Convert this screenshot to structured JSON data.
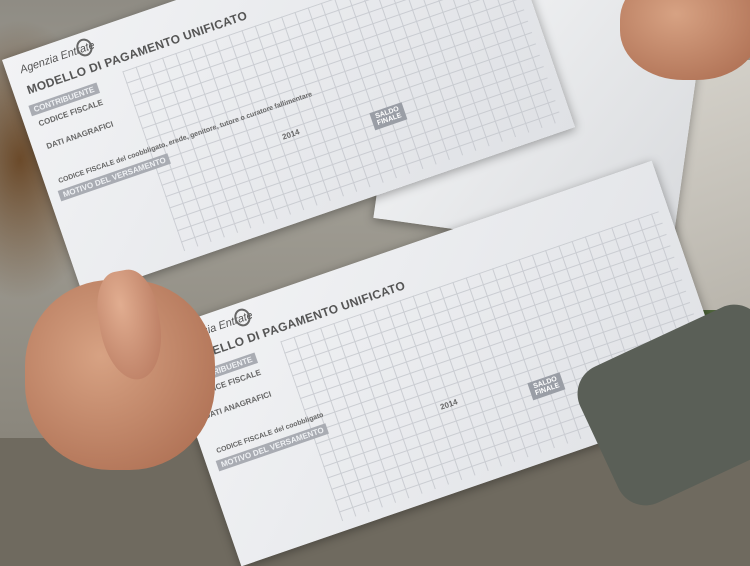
{
  "forms": [
    {
      "logo": "Agenzia Entrate",
      "title": "MODELLO DI PAGAMENTO UNIFICATO",
      "band_contribuente": "CONTRIBUENTE",
      "codice_fiscale": "CODICE FISCALE",
      "dati_anagrafici": "DATI ANAGRAFICI",
      "coobbligato": "CODICE FISCALE del coobbligato, erede, genitore, tutore o curatore fallimentare",
      "motivo": "MOTIVO DEL VERSAMENTO",
      "saldo": "SALDO FINALE",
      "year": "2014"
    },
    {
      "logo": "Agenzia Entrate",
      "title": "MODELLO DI PAGAMENTO UNIFICATO",
      "band_contribuente": "CONTRIBUENTE",
      "codice_fiscale": "CODICE FISCALE",
      "dati_anagrafici": "DATI ANAGRAFICI",
      "coobbligato": "CODICE FISCALE del coobbligato",
      "motivo": "MOTIVO DEL VERSAMENTO",
      "saldo": "SALDO FINALE",
      "year": "2014"
    }
  ]
}
